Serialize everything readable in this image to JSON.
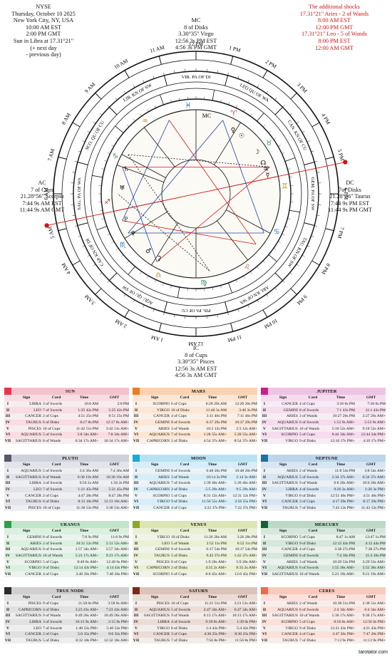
{
  "header_left": [
    "NYSE",
    "Thursday, October 10 2025",
    "New York City, NY, USA",
    "10:00 AM EST",
    "2:00 PM GMT",
    "Sun in Libra at 17.31°21\"",
    "(+ next day",
    "- previous day)"
  ],
  "header_right": [
    "The additional shocks",
    "17.31°21\" Aries - 2 of Wands",
    "8:00 AM EST",
    "12:00 PM GMT",
    "17.31°21\" Leo - 5 of Wands",
    "8:00 PM EST",
    "12:00 AM GMT"
  ],
  "mc": [
    "MC",
    "8 of Disks",
    "3.30°35\" Virgo",
    "12:56 3s PM EST",
    "4:56 3s PM GMT"
  ],
  "ic": [
    "IC",
    "8 of Cups",
    "3.30°35\" Pisces",
    "12:56 3s AM EST",
    "4:56 3s AM GMT"
  ],
  "ac": [
    "AC",
    "7 of Cups",
    "21.28°56\" Scorpio",
    "7:44 9s AM EST",
    "11:44 9s AM GMT"
  ],
  "dc": [
    "DC",
    "7of Disks",
    "21.28°56\" Taurus",
    "7:44 9s PM EST",
    "11:44 9s PM GMT"
  ],
  "wheel": {
    "hours": [
      "12 PM",
      "1 PM",
      "2 PM",
      "3 PM",
      "4 PM",
      "5 PM",
      "6 PM",
      "7 PM",
      "8 PM",
      "9 PM",
      "10 PM",
      "11 PM",
      "12 AM",
      "1 AM",
      "2 AM",
      "3 AM",
      "4 AM",
      "5 AM",
      "6 AM",
      "7 AM",
      "8 AM",
      "9 AM",
      "10 AM",
      "11 AM"
    ],
    "cards": [
      "VIR. PA OF DI",
      "LEO QU OF WA",
      "CAN. KN OF CU",
      "GEM. PA OF SW",
      "TAU. KN OF SW",
      "ARI. KN OF WA",
      "PIS. PA OF CU",
      "AQU. QU OF SW",
      "CAP. KN OF DI",
      "SAG. PA OF WA",
      "SCO. QU OF CU",
      "LIB. KN OF SW"
    ],
    "glyphs": [
      "♈",
      "♉",
      "♊",
      "♋",
      "♌",
      "♍",
      "♎",
      "♏",
      "♐",
      "♑",
      "♒",
      "♓"
    ],
    "planets": [
      "☉",
      "☽",
      "☿",
      "♀",
      "♂",
      "♃",
      "♄",
      "♅",
      "♆",
      "♇",
      "☊",
      "⚳"
    ],
    "mc_label": "MC",
    "ac_label": "AC"
  },
  "columns": [
    "Sign",
    "Card",
    "Time",
    "GMT"
  ],
  "tables": [
    {
      "title": "SUN",
      "color": "#e8354f",
      "bg": "#f9dde2",
      "hbg": "#f5c3cd",
      "rows": [
        [
          "I",
          "LIBRA",
          "3 of Swords",
          "10:0 AM",
          "2:0 PM"
        ],
        [
          "II",
          "LEO",
          "7 of Swords",
          "1:25 42s PM",
          "5:25 42s PM"
        ],
        [
          "III",
          "CANCER",
          "2 of Cups",
          "4:51 25s PM",
          "8:51 25s PM"
        ],
        [
          "IV",
          "TAURUS",
          "6 of Disks",
          "8:17 8s PM",
          "12:17 8s AM+"
        ],
        [
          "V",
          "PISCES",
          "10 of Cups",
          "11:42 51s PM",
          "3:42 51s AM+"
        ],
        [
          "VI",
          "AQUARIUS",
          "5 of Swords",
          "3:8 34s AM+",
          "7:8 34s AM+"
        ],
        [
          "VII",
          "SAGITTARIUS",
          "8 of Wands",
          "6:34 17s AM+",
          "10:34 17s AM+"
        ]
      ]
    },
    {
      "title": "MARS",
      "color": "#ef7b21",
      "bg": "#fde6d3",
      "hbg": "#fbd2b1",
      "rows": [
        [
          "I",
          "SCORPIO",
          "6 of Cups",
          "8:20 20s AM",
          "12:20 20s PM"
        ],
        [
          "II",
          "VIRGO",
          "10 of Disks",
          "11:46 3s AM",
          "3:46 3s PM"
        ],
        [
          "III",
          "CANCER",
          "4 of Cups",
          "3:11 46s PM",
          "7:11 46s PM"
        ],
        [
          "IV",
          "GEMINI",
          "8 of Swords",
          "6:37 29s PM",
          "10:37 29s PM"
        ],
        [
          "V",
          "ARIES",
          "3 of Wands",
          "10:3 12s PM",
          "2:3 12s AM+"
        ],
        [
          "VI",
          "AQUARIUS",
          "7 of Swords",
          "1:28 55s AM+",
          "5:28 55s AM+"
        ],
        [
          "VII",
          "CAPRICORN",
          "2 of Disks",
          "4:54 37s AM+",
          "8:54 37s AM+"
        ]
      ]
    },
    {
      "title": "JUPITER",
      "color": "#c2238a",
      "bg": "#f6dcee",
      "hbg": "#efc3e2",
      "rows": [
        [
          "I",
          "CANCER",
          "4 of Cups",
          "3:36 0s PM",
          "7:36 0s PM"
        ],
        [
          "II",
          "GEMINI",
          "8 of Swords",
          "7:1 43s PM",
          "11:1 43s PM"
        ],
        [
          "III",
          "ARIES",
          "3 of Wands",
          "10:27 26s PM",
          "2:27 26s AM+"
        ],
        [
          "IV",
          "AQUARIUS",
          "6 of Swords",
          "1:53 9s AM+",
          "5:53 9s AM+"
        ],
        [
          "V",
          "SAGITTARIUS",
          "10 of Wands",
          "5:18 52s AM+",
          "9:18 52s AM+"
        ],
        [
          "VI",
          "SCORPIO",
          "5 of Cups",
          "8:44 34s AM+",
          "12:44 34s PM+"
        ],
        [
          "VII",
          "VIRGO",
          "9 of Disks",
          "12:10 17s PM+",
          "4:10 17s PM+"
        ]
      ]
    },
    {
      "title": "PLUTO",
      "color": "#55596b",
      "bg": "#e3e4ea",
      "hbg": "#cfd1da",
      "rows": [
        [
          "I",
          "AQUARIUS",
          "5 of Swords",
          "3:4 36s AM",
          "7:4 36s AM"
        ],
        [
          "II",
          "SAGITTARIUS",
          "8 of Wands",
          "6:30 19s AM",
          "10:30 19s AM"
        ],
        [
          "III",
          "LIBRA",
          "3 of Swords",
          "9:56 2s AM",
          "1:56 2s PM"
        ],
        [
          "IV",
          "LEO",
          "7 of Swords",
          "1:21 45s PM",
          "5:21 45s PM"
        ],
        [
          "V",
          "CANCER",
          "2 of Cups",
          "4:47 28s PM",
          "8:47 28s PM"
        ],
        [
          "VI",
          "TAURUS",
          "6 of Disks",
          "8:13 10s PM",
          "12:13 10s AM+"
        ],
        [
          "VII",
          "PISCES",
          "10 of Cups",
          "11:38 53s PM",
          "3:38 53s AM+"
        ]
      ]
    },
    {
      "title": "MOON",
      "color": "#1aa8dc",
      "bg": "#d7eef8",
      "hbg": "#b8e1f3",
      "rows": [
        [
          "I",
          "GEMINI",
          "8 of Swords",
          "6:48 20s PM",
          "10:48 20s PM"
        ],
        [
          "II",
          "ARIES",
          "3 of Wands",
          "10:14 3s PM",
          "2:14 3s AM+"
        ],
        [
          "III",
          "AQUARIUS",
          "7 of Swords",
          "1:39 46s AM+",
          "5:39 46s AM+"
        ],
        [
          "IV",
          "CAPRICORN",
          "2 of Disks",
          "5:5 29s AM+",
          "9:5 29s AM+"
        ],
        [
          "V",
          "SCORPIO",
          "5 of Cups",
          "8:31 12s AM+",
          "12:31 12s PM+"
        ],
        [
          "VI",
          "VIRGO",
          "9 of Disks",
          "11:56 55s AM+",
          "3:56 55s PM+"
        ],
        [
          "VII",
          "CANCER",
          "4 of Cups",
          "3:22 37s PM+",
          "7:22 37s PM+"
        ]
      ]
    },
    {
      "title": "NEPTUNE",
      "color": "#1f6fa5",
      "bg": "#d7e6f2",
      "hbg": "#bcd5ea",
      "rows": [
        [
          "I",
          "ARIES",
          "2 of Wands",
          "11:8 54s PM",
          "3:8 54s AM+"
        ],
        [
          "II",
          "AQUARIUS",
          "5 of Swords",
          "2:34 37s AM+",
          "6:34 37s AM+"
        ],
        [
          "III",
          "SAGITTARIUS",
          "9 of Wands",
          "6:0 20s AM+",
          "10:0 20s AM+"
        ],
        [
          "IV",
          "LIBRA",
          "4 of Swords",
          "9:26 3s AM+",
          "1:26 3s PM+"
        ],
        [
          "V",
          "VIRGO",
          "8 of Disks",
          "12:51 46s PM+",
          "4:51 46s PM+"
        ],
        [
          "VI",
          "CANCER",
          "3 of Cups",
          "4:17 29s PM+",
          "8:17 29s PM+"
        ],
        [
          "VII",
          "TAURUS",
          "7 of Disks",
          "7:43 12s PM+",
          "11:43 12s PM+"
        ]
      ]
    },
    {
      "title": "URANUS",
      "color": "#2f9e4a",
      "bg": "#dbf0df",
      "hbg": "#c1e5c8",
      "rows": [
        [
          "I",
          "GEMINI",
          "8 of Swords",
          "7:6 9s PM",
          "11:6 9s PM"
        ],
        [
          "II",
          "ARIES",
          "2 of Swords",
          "10:31 52s PM",
          "2:31 52s AM+"
        ],
        [
          "III",
          "AQUARIUS",
          "6 of Swords",
          "1:57 34s AM+",
          "5:57 34s AM+"
        ],
        [
          "IV",
          "SAGITTARIUS",
          "10 of Wands",
          "5:23 17s AM+",
          "9:23 17s AM+"
        ],
        [
          "V",
          "SCORPIO",
          "5 of Cups",
          "8:49 0s AM+",
          "12:49 0s PM+"
        ],
        [
          "VI",
          "VIRGO",
          "9 of Disks",
          "12:14 43s PM+",
          "4:14 43s PM+"
        ],
        [
          "VII",
          "CANCER",
          "4 of Cups",
          "3:40 26s PM+",
          "7:40 26s PM+"
        ]
      ]
    },
    {
      "title": "VENUS",
      "color": "#8ea62a",
      "bg": "#eaf0d4",
      "hbg": "#dbe5b6",
      "rows": [
        [
          "I",
          "VIRGO",
          "10 of Disks",
          "11:26 28s AM",
          "3:26 28s PM"
        ],
        [
          "II",
          "LEO",
          "5 of Wands",
          "2:52 11s PM",
          "6:52 11s PM"
        ],
        [
          "III",
          "GEMINI",
          "9 of Swords",
          "6:17 54s PM",
          "10:17 54s PM"
        ],
        [
          "IV",
          "TAURUS",
          "5 of Disks",
          "9:43 37s PM",
          "1:43 37s AM+"
        ],
        [
          "V",
          "PISCES",
          "8 of Cups",
          "1:9 20s AM+",
          "5:9 20s AM+"
        ],
        [
          "VI",
          "CAPRICORN",
          "2 of Disks",
          "4:35 2s AM+",
          "8:35 2s AM+"
        ],
        [
          "VII",
          "SCORPIO",
          "6 of Cups",
          "8:0 45s AM+",
          "12:0 45s PM+"
        ]
      ]
    },
    {
      "title": "MERCURY",
      "color": "#14613a",
      "bg": "#d6e8dc",
      "hbg": "#bcd9c5",
      "rows": [
        [
          "I",
          "SCORPIO",
          "5 of Cups",
          "8:47 1s AM",
          "12:47 1s PM"
        ],
        [
          "II",
          "VIRGO",
          "9 of Disks",
          "12:12 44s PM",
          "4:12 44s PM"
        ],
        [
          "III",
          "CANCER",
          "4 of Cups",
          "3:38 27s PM",
          "7:38 27s PM"
        ],
        [
          "IV",
          "GEMINI",
          "8 of Swords",
          "7:4 10s PM",
          "11:4 10s PM"
        ],
        [
          "V",
          "ARIES",
          "3 of Wands",
          "10:29 53s PM",
          "2:29 53s AM+"
        ],
        [
          "VI",
          "AQUARIUS",
          "6 of Swords",
          "1:55 36s AM+",
          "5:55 36s AM+"
        ],
        [
          "VII",
          "SAGITTARIUS",
          "10 of Wands",
          "5:21 19s AM+",
          "9:21 19s AM+"
        ]
      ]
    },
    {
      "title": "TRUE NODE",
      "color": "#2b2b2b",
      "bg": "#e1e1e1",
      "hbg": "#cfcfcf",
      "rows": [
        [
          "I",
          "PISCES",
          "9 of Cups",
          "11:58 0s PM",
          "3:58 0s AM+"
        ],
        [
          "II",
          "CAPRICORN",
          "4 of Disks",
          "3:23 43s AM+",
          "7:23 43s AM+"
        ],
        [
          "III",
          "SAGITTARIUS",
          "9 of Wands",
          "6:49 26s AM+",
          "10:49 26s AM+"
        ],
        [
          "IV",
          "LIBRA",
          "3 of Swords",
          "10:15 9s AM+",
          "2:15 9s PM+"
        ],
        [
          "V",
          "LEO",
          "7 of Swords",
          "1:40 52s PM+",
          "5:40 52s PM+"
        ],
        [
          "VI",
          "CANCER",
          "2 of Cups",
          "5:6 35s PM+",
          "9:6 35s PM+"
        ],
        [
          "VII",
          "TAURUS",
          "5 of Disks",
          "8:32 18s PM+",
          "12:32 18s AM+"
        ]
      ]
    },
    {
      "title": "SATURN",
      "color": "#7a2a17",
      "bg": "#ecdcd6",
      "hbg": "#dcc3b9",
      "rows": [
        [
          "I",
          "PISCES",
          "10 of Cups",
          "11:21 51s PM",
          "3:21 51s AM+"
        ],
        [
          "II",
          "AQUARIUS",
          "5 of Swords",
          "2:47 34s AM+",
          "6:47 34s AM+"
        ],
        [
          "III",
          "SAGITTARIUS",
          "9 of Wands",
          "6:13 17s AM+",
          "10:13 17s AM+"
        ],
        [
          "IV",
          "LIBRA",
          "4 of Swords",
          "9:39 0s AM+",
          "1:39 0s PM+"
        ],
        [
          "V",
          "VIRGO",
          "8 of Disks",
          "1:4 42s PM+",
          "5:4 42s PM+"
        ],
        [
          "VI",
          "CANCER",
          "3 of Cups",
          "4:30 25s PM+",
          "8:30 25s PM+"
        ],
        [
          "VII",
          "TAURUS",
          "7 of Disks",
          "7:56 8s PM+",
          "11:56 8s PM+"
        ]
      ]
    },
    {
      "title": "CERES",
      "color": "#ef6a4c",
      "bg": "#fce0d9",
      "hbg": "#f8c9bd",
      "rows": [
        [
          "I",
          "ARIES",
          "2 of Wands",
          "10:38 51s PM",
          "2:38 51s AM+"
        ],
        [
          "II",
          "AQUARIUS",
          "6 of Swords",
          "2:4 34s AM+",
          "6:4 34s AM+"
        ],
        [
          "III",
          "SAGITTARIUS",
          "10 of Wands",
          "5:30 17s AM+",
          "9:30 17s AM+"
        ],
        [
          "IV",
          "SCORPIO",
          "5 of Cups",
          "8:56 0s AM+",
          "12:56 0s PM+"
        ],
        [
          "V",
          "VIRGO",
          "9 of Disks",
          "12:21 43s PM+",
          "4:21 43s PM+"
        ],
        [
          "VI",
          "CANCER",
          "4 of Cups",
          "3:47 26s PM+",
          "7:47 26s PM+"
        ],
        [
          "VII",
          "TAURUS",
          "7 of Disks",
          "7:13 9s PM+",
          "11:13 9s PM+"
        ]
      ]
    }
  ],
  "footer": "tarotator.com"
}
